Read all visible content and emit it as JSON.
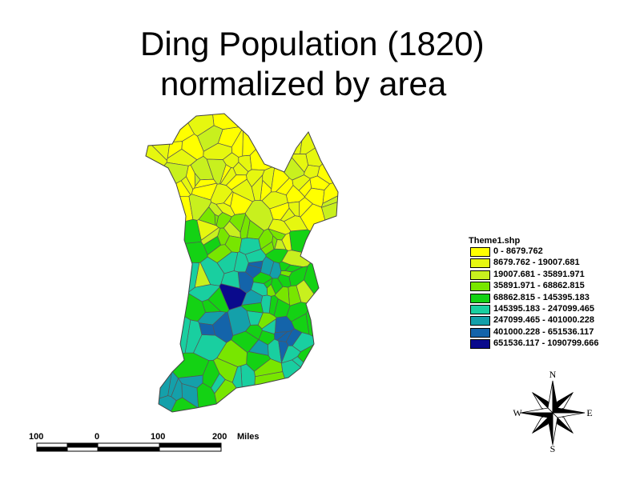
{
  "title_line1": "Ding Population (1820)",
  "title_line2": "normalized by area",
  "legend": {
    "title": "Theme1.shp",
    "items": [
      {
        "label": "0 - 8679.762",
        "color": "#ffff00"
      },
      {
        "label": "8679.762 - 19007.681",
        "color": "#e6f70f"
      },
      {
        "label": "19007.681 - 35891.971",
        "color": "#c8f01e"
      },
      {
        "label": "35891.971 - 68862.815",
        "color": "#78e600"
      },
      {
        "label": "68862.815 - 145395.183",
        "color": "#14d214"
      },
      {
        "label": "145395.183 - 247099.465",
        "color": "#19cfa0"
      },
      {
        "label": "247099.465 - 401000.228",
        "color": "#14a0aa"
      },
      {
        "label": "401000.228 - 651536.117",
        "color": "#1464aa"
      },
      {
        "label": "651536.117 - 1090799.666",
        "color": "#0a0a8c"
      }
    ]
  },
  "compass": {
    "n": "N",
    "s": "S",
    "e": "E",
    "w": "W"
  },
  "scale": {
    "labels": [
      "100",
      "0",
      "100",
      "200"
    ],
    "unit": "Miles"
  }
}
